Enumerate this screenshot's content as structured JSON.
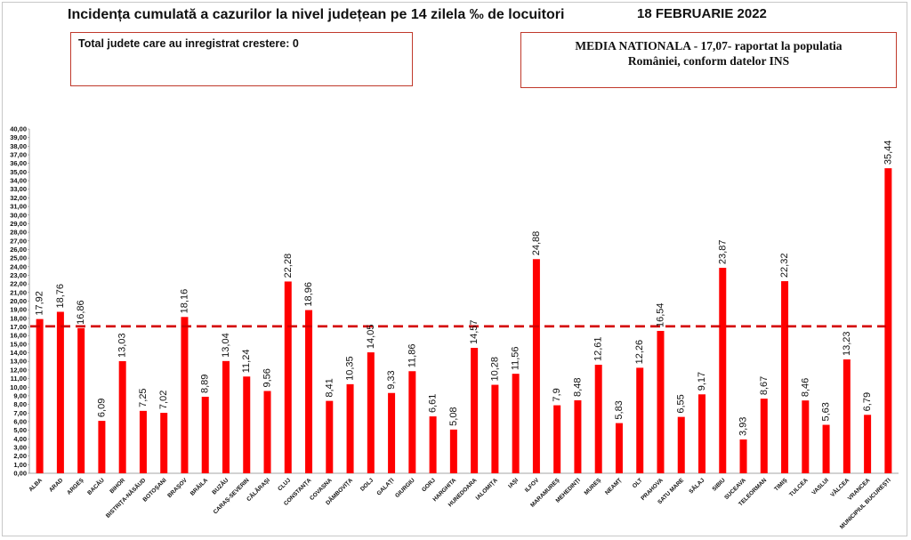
{
  "header": {
    "title": "Incidența cumulată a cazurilor la nivel județean pe 14 zilela ‰ de locuitori",
    "date": "18 FEBRUARIE 2022"
  },
  "info_left": {
    "text": "Total judete care au inregistrat crestere: 0"
  },
  "info_right": {
    "line1": "MEDIA NATIONALA - 17,07-  raportat la populatia",
    "line2": "României, conform datelor INS"
  },
  "colors": {
    "bar": "#ff0000",
    "reference_line": "#d40000",
    "text": "#111111"
  },
  "chart_data": {
    "type": "bar",
    "categories": [
      "ALBA",
      "ARAD",
      "ARGEȘ",
      "BACĂU",
      "BIHOR",
      "BISTRIȚA-NĂSĂUD",
      "BOTOȘANI",
      "BRAȘOV",
      "BRĂILA",
      "BUZĂU",
      "CARAȘ-SEVERIN",
      "CĂLĂRAȘI",
      "CLUJ",
      "CONSTANȚA",
      "COVASNA",
      "DÂMBOVIȚA",
      "DOLJ",
      "GALAȚI",
      "GIURGIU",
      "GORJ",
      "HARGHITA",
      "HUNEDOARA",
      "IALOMIȚA",
      "IAȘI",
      "ILFOV",
      "MARAMUREȘ",
      "MEHEDINȚI",
      "MUREȘ",
      "NEAMȚ",
      "OLT",
      "PRAHOVA",
      "SATU MARE",
      "SĂLAJ",
      "SIBIU",
      "SUCEAVA",
      "TELEORMAN",
      "TIMIȘ",
      "TULCEA",
      "VASLUI",
      "VÂLCEA",
      "VRANCEA",
      "MUNICIPIUL BUCUREȘTI"
    ],
    "values": [
      17.92,
      18.76,
      16.86,
      6.09,
      13.03,
      7.25,
      7.02,
      18.16,
      8.89,
      13.04,
      11.24,
      9.56,
      22.28,
      18.96,
      8.41,
      10.35,
      14.05,
      9.33,
      11.86,
      6.61,
      5.08,
      14.57,
      10.28,
      11.56,
      24.88,
      7.9,
      8.48,
      12.61,
      5.83,
      12.26,
      16.54,
      6.55,
      9.17,
      23.87,
      3.93,
      8.67,
      22.32,
      8.46,
      5.63,
      13.23,
      6.79,
      35.44
    ],
    "value_labels": [
      "17,92",
      "18,76",
      "16,86",
      "6,09",
      "13,03",
      "7,25",
      "7,02",
      "18,16",
      "8,89",
      "13,04",
      "11,24",
      "9,56",
      "22,28",
      "18,96",
      "8,41",
      "10,35",
      "14,05",
      "9,33",
      "11,86",
      "6,61",
      "5,08",
      "14,57",
      "10,28",
      "11,56",
      "24,88",
      "7,9",
      "8,48",
      "12,61",
      "5,83",
      "12,26",
      "16,54",
      "6,55",
      "9,17",
      "23,87",
      "3,93",
      "8,67",
      "22,32",
      "8,46",
      "5,63",
      "13,23",
      "6,79",
      "35,44"
    ],
    "reference_line": {
      "value": 17.07
    },
    "ylim": [
      0,
      40
    ],
    "y_ticks": [
      "0,00",
      "1,00",
      "2,00",
      "3,00",
      "4,00",
      "5,00",
      "6,00",
      "7,00",
      "8,00",
      "9,00",
      "10,00",
      "11,00",
      "12,00",
      "13,00",
      "14,00",
      "15,00",
      "16,00",
      "17,00",
      "18,00",
      "19,00",
      "20,00",
      "21,00",
      "22,00",
      "23,00",
      "24,00",
      "25,00",
      "26,00",
      "27,00",
      "28,00",
      "29,00",
      "30,00",
      "31,00",
      "32,00",
      "33,00",
      "34,00",
      "35,00",
      "36,00",
      "37,00",
      "38,00",
      "39,00",
      "40,00"
    ],
    "grid": false,
    "legend": "none"
  }
}
